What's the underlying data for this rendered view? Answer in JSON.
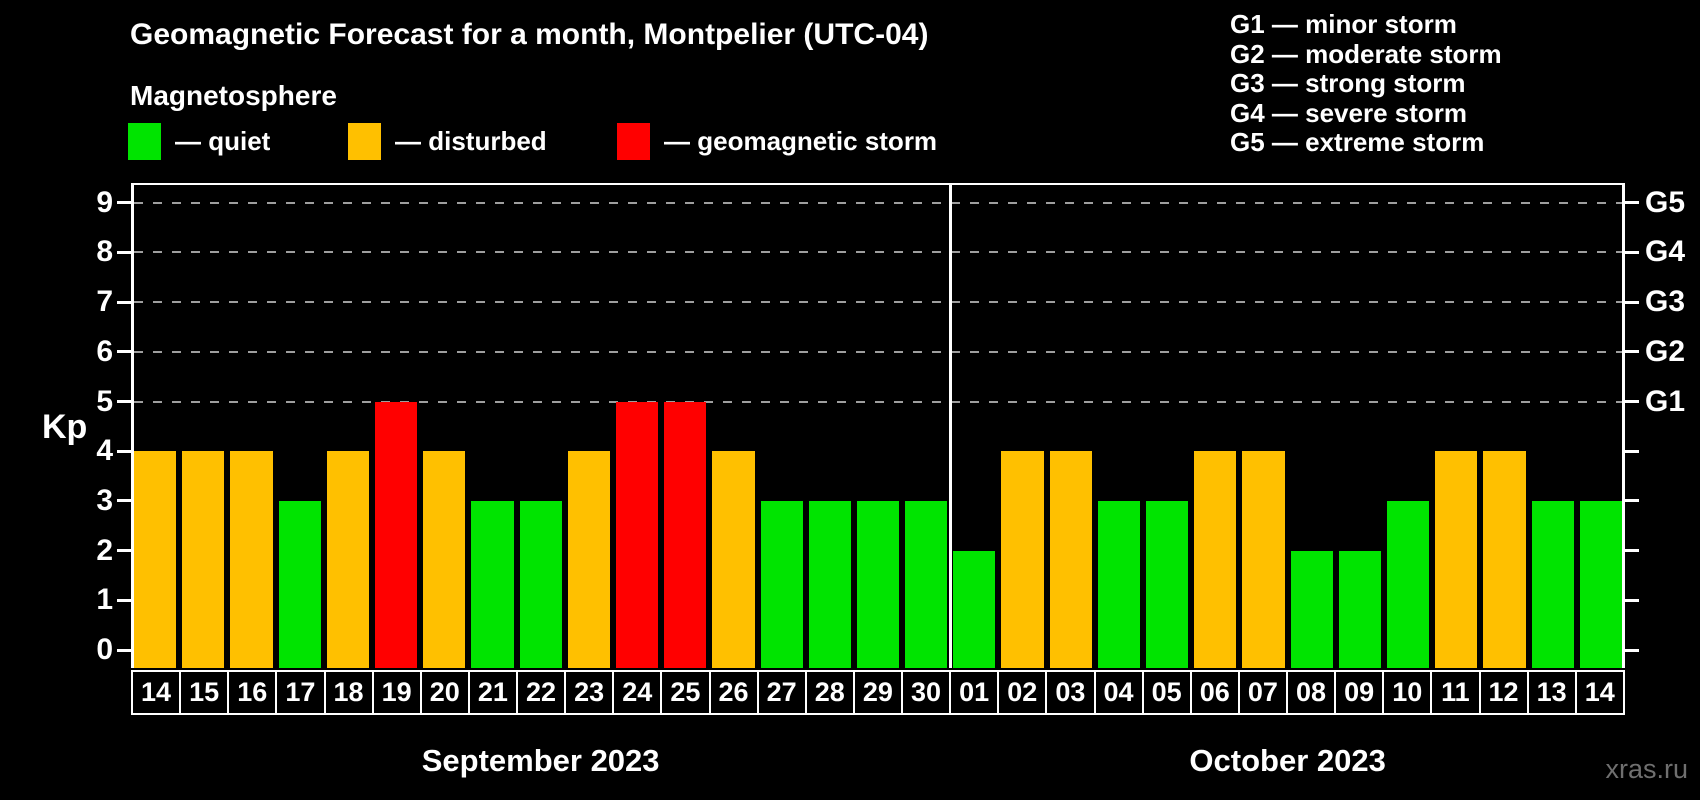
{
  "watermark": "xras.ru",
  "colors": {
    "quiet": "#00e400",
    "disturbed": "#ffc000",
    "storm": "#ff0000",
    "grid": "#9e9e9e",
    "axis": "#ffffff",
    "background": "#000000",
    "watermark_text": "#6f6f6f"
  },
  "chart_data": {
    "type": "bar",
    "title": "Geomagnetic Forecast for a month, Montpelier (UTC-04)",
    "subtitle": "Magnetosphere",
    "ylabel": "Kp",
    "ylim": [
      0,
      9
    ],
    "yticks": [
      0,
      1,
      2,
      3,
      4,
      5,
      6,
      7,
      8,
      9
    ],
    "gridline_kps": [
      5,
      6,
      7,
      8,
      9
    ],
    "grid": "horizontal dashed",
    "legend_position": "top",
    "legend": [
      {
        "status": "quiet",
        "label": "— quiet"
      },
      {
        "status": "disturbed",
        "label": "— disturbed"
      },
      {
        "status": "storm",
        "label": "— geomagnetic storm"
      }
    ],
    "g_legend": [
      "G1 — minor storm",
      "G2 — moderate storm",
      "G3 — strong storm",
      "G4 — severe storm",
      "G5 — extreme storm"
    ],
    "right_axis": [
      {
        "label": "G1",
        "kp": 5
      },
      {
        "label": "G2",
        "kp": 6
      },
      {
        "label": "G3",
        "kp": 7
      },
      {
        "label": "G4",
        "kp": 8
      },
      {
        "label": "G5",
        "kp": 9
      }
    ],
    "months": [
      {
        "name": "September 2023",
        "days": [
          {
            "day": "14",
            "kp": 4,
            "status": "disturbed"
          },
          {
            "day": "15",
            "kp": 4,
            "status": "disturbed"
          },
          {
            "day": "16",
            "kp": 4,
            "status": "disturbed"
          },
          {
            "day": "17",
            "kp": 3,
            "status": "quiet"
          },
          {
            "day": "18",
            "kp": 4,
            "status": "disturbed"
          },
          {
            "day": "19",
            "kp": 5,
            "status": "storm"
          },
          {
            "day": "20",
            "kp": 4,
            "status": "disturbed"
          },
          {
            "day": "21",
            "kp": 3,
            "status": "quiet"
          },
          {
            "day": "22",
            "kp": 3,
            "status": "quiet"
          },
          {
            "day": "23",
            "kp": 4,
            "status": "disturbed"
          },
          {
            "day": "24",
            "kp": 5,
            "status": "storm"
          },
          {
            "day": "25",
            "kp": 5,
            "status": "storm"
          },
          {
            "day": "26",
            "kp": 4,
            "status": "disturbed"
          },
          {
            "day": "27",
            "kp": 3,
            "status": "quiet"
          },
          {
            "day": "28",
            "kp": 3,
            "status": "quiet"
          },
          {
            "day": "29",
            "kp": 3,
            "status": "quiet"
          },
          {
            "day": "30",
            "kp": 3,
            "status": "quiet"
          }
        ]
      },
      {
        "name": "October 2023",
        "days": [
          {
            "day": "01",
            "kp": 2,
            "status": "quiet"
          },
          {
            "day": "02",
            "kp": 4,
            "status": "disturbed"
          },
          {
            "day": "03",
            "kp": 4,
            "status": "disturbed"
          },
          {
            "day": "04",
            "kp": 3,
            "status": "quiet"
          },
          {
            "day": "05",
            "kp": 3,
            "status": "quiet"
          },
          {
            "day": "06",
            "kp": 4,
            "status": "disturbed"
          },
          {
            "day": "07",
            "kp": 4,
            "status": "disturbed"
          },
          {
            "day": "08",
            "kp": 2,
            "status": "quiet"
          },
          {
            "day": "09",
            "kp": 2,
            "status": "quiet"
          },
          {
            "day": "10",
            "kp": 3,
            "status": "quiet"
          },
          {
            "day": "11",
            "kp": 4,
            "status": "disturbed"
          },
          {
            "day": "12",
            "kp": 4,
            "status": "disturbed"
          },
          {
            "day": "13",
            "kp": 3,
            "status": "quiet"
          },
          {
            "day": "14",
            "kp": 3,
            "status": "quiet"
          }
        ]
      }
    ]
  }
}
